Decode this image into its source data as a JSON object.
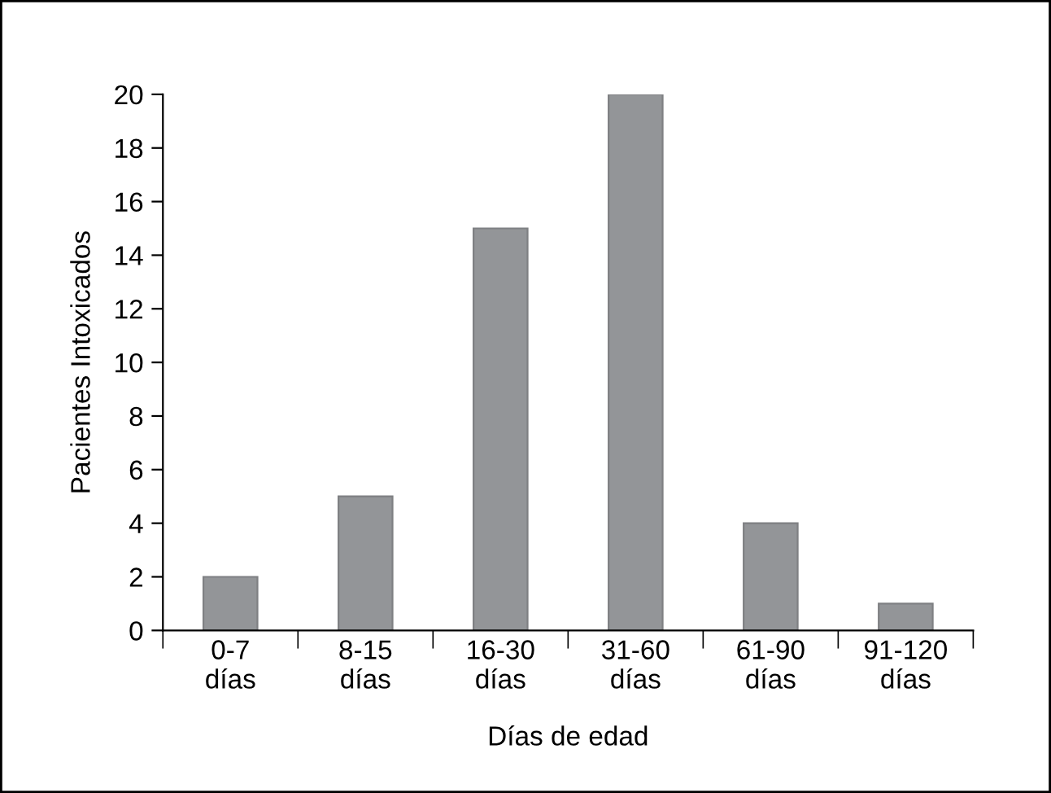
{
  "chart_data": {
    "type": "bar",
    "xlabel": "Días de edad",
    "ylabel": "Pacientes Intoxicados",
    "categories": [
      "0-7\ndías",
      "8-15\ndías",
      "16-30\ndías",
      "31-60\ndías",
      "61-90\ndías",
      "91-120\ndías"
    ],
    "values": [
      2,
      5,
      15,
      20,
      4,
      1
    ],
    "color": "#939598",
    "ylim": [
      0,
      20
    ],
    "yticks": [
      0,
      2,
      4,
      6,
      8,
      10,
      12,
      14,
      16,
      18,
      20
    ],
    "grid": false,
    "legend": false
  }
}
